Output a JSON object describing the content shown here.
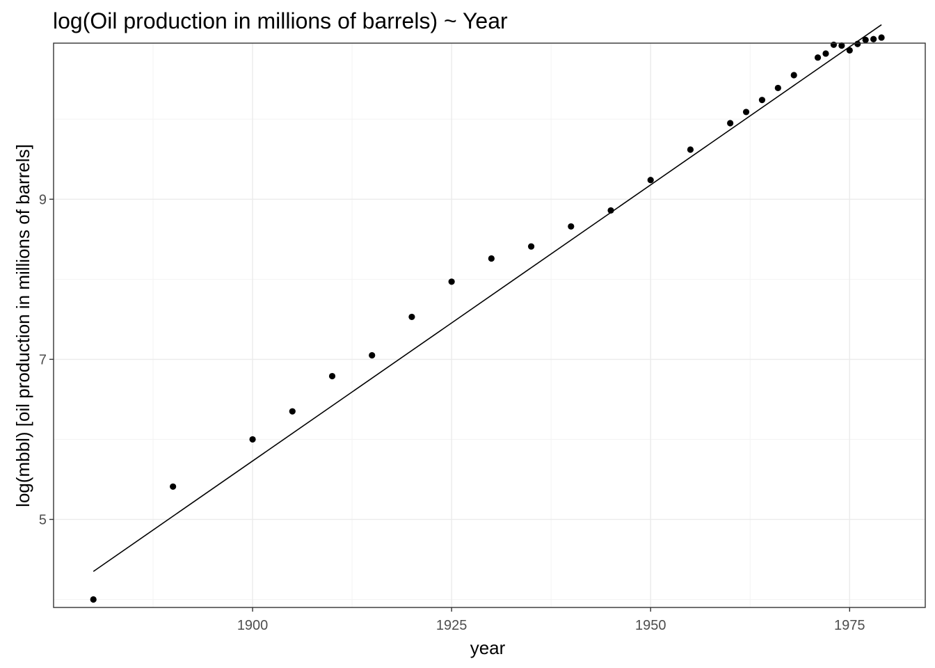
{
  "chart_data": {
    "type": "scatter",
    "title": "log(Oil production in millions of barrels) ~ Year",
    "xlabel": "year",
    "ylabel": "log(mbbl) [oil production in millions of barrels]",
    "xlim": [
      1875,
      1984.5
    ],
    "ylim": [
      3.9,
      10.95
    ],
    "x_ticks": [
      1900,
      1925,
      1950,
      1975
    ],
    "x_minor_ticks": [
      1887.5,
      1912.5,
      1937.5,
      1962.5
    ],
    "y_ticks": [
      5,
      7,
      9
    ],
    "y_minor_ticks": [
      4,
      6,
      8,
      10
    ],
    "grid": true,
    "legend": "none",
    "series": [
      {
        "values_x": [
          1880,
          1890,
          1900,
          1905,
          1910,
          1915,
          1920,
          1925,
          1930,
          1935,
          1940,
          1945,
          1950,
          1955,
          1960,
          1962,
          1964,
          1966,
          1968,
          1971,
          1972,
          1973,
          1974,
          1975,
          1976,
          1977,
          1978,
          1979
        ],
        "values_y": [
          4.0,
          5.41,
          6.0,
          6.35,
          6.79,
          7.05,
          7.53,
          7.97,
          8.26,
          8.41,
          8.66,
          8.86,
          9.24,
          9.62,
          9.95,
          10.09,
          10.24,
          10.39,
          10.55,
          10.77,
          10.82,
          10.93,
          10.92,
          10.86,
          10.94,
          10.99,
          11.0,
          11.02
        ]
      }
    ],
    "fit_line": {
      "x": [
        1880,
        1979
      ],
      "y": [
        4.35,
        11.18
      ]
    }
  }
}
